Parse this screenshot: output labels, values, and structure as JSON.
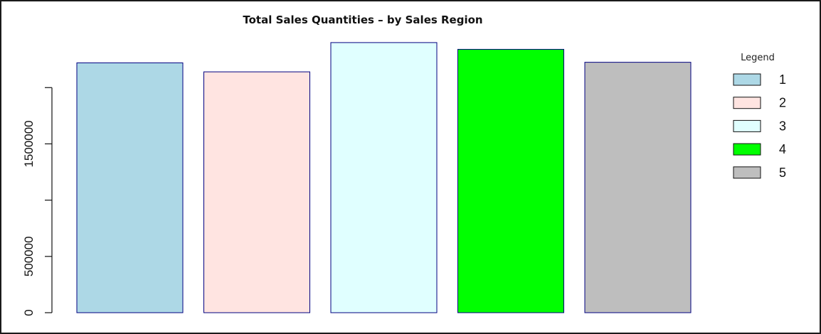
{
  "chart_data": {
    "type": "bar",
    "title": "Total Sales Quantities – by Sales Region",
    "xlabel": "",
    "ylabel": "",
    "categories": [
      "1",
      "2",
      "3",
      "4",
      "5"
    ],
    "values": [
      2220000,
      2140000,
      2400000,
      2340000,
      2225000
    ],
    "colors": [
      "#add8e6",
      "#ffe4e1",
      "#e0ffff",
      "#00ff00",
      "#bebebe"
    ],
    "bar_border_color": "#000080",
    "ylim": [
      0,
      2450000
    ],
    "y_ticks": [
      0,
      500000,
      1000000,
      1500000,
      2000000
    ],
    "y_tick_labels": [
      "0",
      "500000",
      "",
      "1500000",
      ""
    ],
    "grid": false,
    "legend": {
      "title": "Legend",
      "placement": "right",
      "entries": [
        "1",
        "2",
        "3",
        "4",
        "5"
      ]
    }
  }
}
